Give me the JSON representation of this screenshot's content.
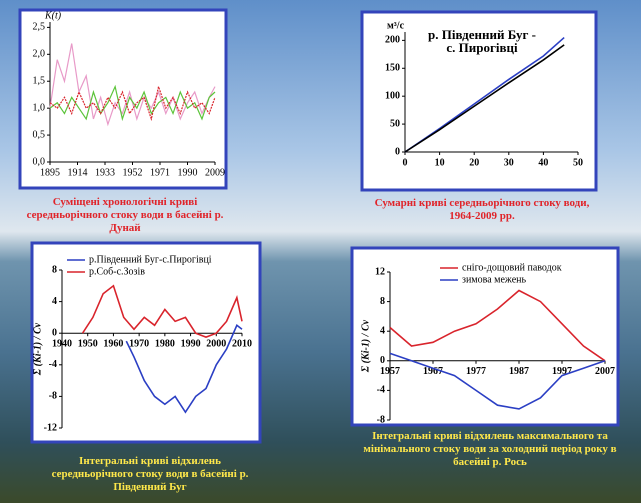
{
  "chart_data": [
    {
      "type": "line",
      "ylabel": "K(t)",
      "caption": "Суміщені хронологічні криві середньорічного стоку води в басейні р. Дунай",
      "x": [
        1895,
        1900,
        1905,
        1910,
        1915,
        1920,
        1925,
        1930,
        1935,
        1940,
        1945,
        1950,
        1955,
        1960,
        1965,
        1970,
        1975,
        1980,
        1985,
        1990,
        1995,
        2000,
        2005,
        2009
      ],
      "xlim": [
        1895,
        2009
      ],
      "xticks": [
        1895,
        1914,
        1933,
        1952,
        1971,
        1990,
        2009
      ],
      "ylim": [
        0,
        2.6
      ],
      "yticks": [
        {
          "value": 0,
          "label": "0,0"
        },
        {
          "value": 0.5,
          "label": "0,5"
        },
        {
          "value": 1,
          "label": "1,0"
        },
        {
          "value": 1.5,
          "label": "1,5"
        },
        {
          "value": 2,
          "label": "2,0"
        },
        {
          "value": 2.5,
          "label": "2,5"
        }
      ],
      "series": [
        {
          "color": "#e89ac8",
          "values": [
            1.0,
            1.9,
            1.5,
            2.2,
            1.3,
            1.6,
            0.8,
            1.2,
            0.7,
            1.1,
            0.9,
            1.3,
            0.8,
            1.2,
            1.0,
            1.3,
            0.9,
            1.2,
            0.8,
            1.1,
            1.3,
            0.9,
            1.2,
            1.4
          ]
        },
        {
          "color": "#5cc43a",
          "values": [
            1.0,
            1.1,
            0.9,
            1.2,
            1.0,
            0.8,
            1.3,
            0.9,
            1.1,
            1.4,
            0.8,
            1.2,
            1.0,
            1.3,
            0.9,
            1.1,
            1.2,
            0.9,
            1.3,
            1.0,
            1.1,
            0.8,
            1.2,
            1.3
          ]
        },
        {
          "color": "#d9242c",
          "values": [
            1.1,
            1.0,
            1.2,
            0.9,
            1.3,
            1.0,
            1.1,
            0.9,
            1.2,
            1.0,
            1.3,
            0.9,
            1.1,
            1.2,
            0.8,
            1.4,
            1.0,
            1.2,
            0.9,
            1.3,
            1.0,
            1.1,
            0.9,
            1.2
          ]
        }
      ]
    },
    {
      "type": "line",
      "title": "р. Південний Буг - с. Пирогівці",
      "ylabel": "м³/с",
      "caption": "Сумарні криві середньорічного стоку води, 1964-2009 рр.",
      "x": [
        0,
        10,
        20,
        30,
        40,
        46
      ],
      "xlim": [
        0,
        50
      ],
      "xticks": [
        0,
        10,
        20,
        30,
        40,
        50
      ],
      "ylim": [
        0,
        215
      ],
      "yticks": [
        0,
        50,
        100,
        150,
        200
      ],
      "series": [
        {
          "color": "#2b3fc4",
          "values": [
            0,
            42,
            86,
            130,
            172,
            205
          ]
        },
        {
          "color": "#000000",
          "values": [
            0,
            40,
            82,
            124,
            165,
            192
          ]
        }
      ]
    },
    {
      "type": "line",
      "ylabel": "Σ (Кі-1) / Сv",
      "legend": "upper left",
      "caption": "Інтегральні криві відхилень середньорічного стоку води в басейні р. Південний Буг",
      "xlim": [
        1940,
        2010
      ],
      "xticks": [
        1940,
        1950,
        1960,
        1970,
        1980,
        1990,
        2000,
        2010
      ],
      "ylim": [
        -12,
        8
      ],
      "yticks": [
        -12,
        -8,
        -4,
        0,
        4,
        8
      ],
      "series": [
        {
          "name": "р.Південний Буг-с.Пирогівці",
          "color": "#2b3fc4",
          "x": [
            1965,
            1968,
            1972,
            1976,
            1980,
            1984,
            1988,
            1992,
            1996,
            2000,
            2004,
            2008,
            2010
          ],
          "values": [
            -1,
            -3,
            -6,
            -8,
            -9,
            -8,
            -10,
            -8,
            -7,
            -4,
            -2,
            1,
            0.5
          ]
        },
        {
          "name": "р.Соб-с.Зозів",
          "color": "#d9242c",
          "x": [
            1948,
            1952,
            1956,
            1960,
            1964,
            1968,
            1972,
            1976,
            1980,
            1984,
            1988,
            1992,
            1996,
            2000,
            2004,
            2008,
            2010
          ],
          "values": [
            0,
            2,
            5,
            6,
            2,
            0.5,
            2,
            1,
            3,
            1.5,
            2,
            0,
            -0.5,
            0,
            1.5,
            4.5,
            1.5
          ]
        }
      ]
    },
    {
      "type": "line",
      "ylabel": "Σ (Кі-1) / Сv",
      "legend": "upper center",
      "caption": "Інтегральні криві відхилень максимального та мінімального стоку води за холодний період року в басейні р. Рось",
      "x": [
        1957,
        1962,
        1967,
        1972,
        1977,
        1982,
        1987,
        1992,
        1997,
        2002,
        2007
      ],
      "xlim": [
        1957,
        2007
      ],
      "xticks": [
        1957,
        1967,
        1977,
        1987,
        1997,
        2007
      ],
      "ylim": [
        -8,
        12
      ],
      "yticks": [
        -8,
        -4,
        0,
        4,
        8,
        12
      ],
      "series": [
        {
          "name": "сніго-дощовий паводок",
          "color": "#d9242c",
          "values": [
            4.5,
            2,
            2.5,
            4,
            5,
            7,
            9.5,
            8,
            5,
            2,
            0
          ]
        },
        {
          "name": "зимова межень",
          "color": "#2b3fc4",
          "values": [
            1,
            0,
            -1,
            -2,
            -4,
            -6,
            -6.5,
            -5,
            -2,
            -1,
            0
          ]
        }
      ]
    }
  ]
}
